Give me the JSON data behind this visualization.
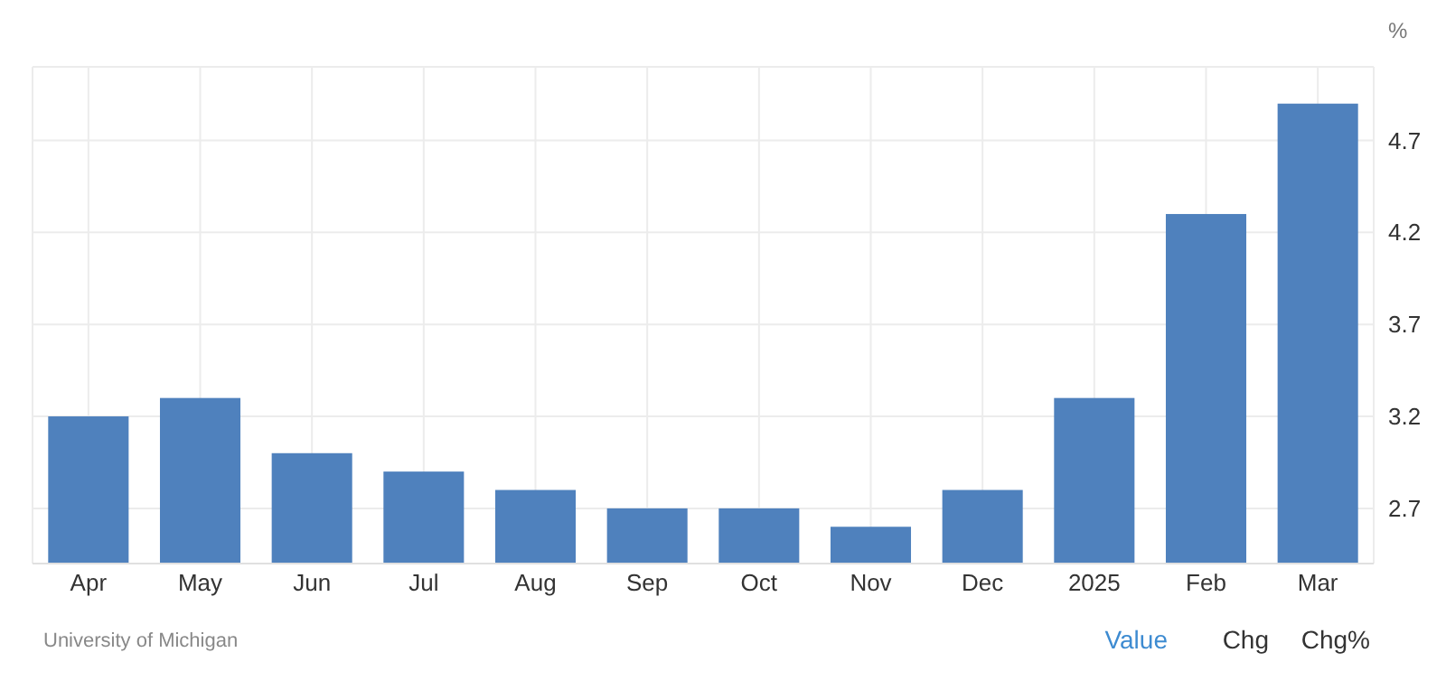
{
  "chart_data": {
    "type": "bar",
    "ylabel": "%",
    "categories": [
      "Apr",
      "May",
      "Jun",
      "Jul",
      "Aug",
      "Sep",
      "Oct",
      "Nov",
      "Dec",
      "2025",
      "Feb",
      "Mar"
    ],
    "values": [
      3.2,
      3.3,
      3.0,
      2.9,
      2.8,
      2.7,
      2.7,
      2.6,
      2.8,
      3.3,
      4.3,
      4.9
    ],
    "color": "#4f81bd",
    "ylim": [
      2.4,
      5.1
    ],
    "yticks": [
      2.7,
      3.2,
      3.7,
      4.2,
      4.7
    ],
    "grid": true,
    "annotations": [
      "University of Michigan",
      "Value",
      "Chg",
      "Chg%"
    ]
  }
}
